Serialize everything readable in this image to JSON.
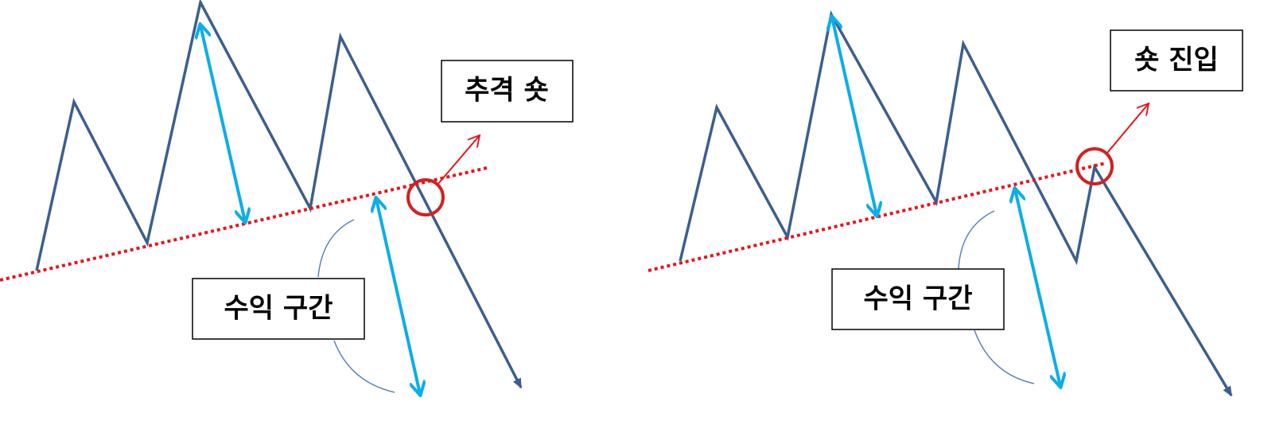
{
  "panels": [
    {
      "label": "추격 숏",
      "zone_label": "수익 구간"
    },
    {
      "label": "숏 진입",
      "zone_label": "수익 구간"
    }
  ]
}
